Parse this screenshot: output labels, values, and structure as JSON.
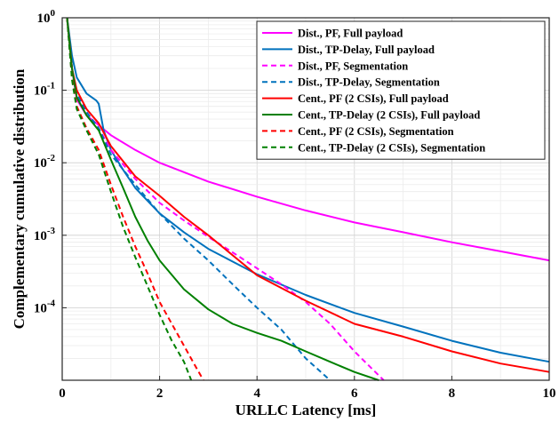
{
  "chart_data": {
    "type": "line",
    "xlabel": "URLLC Latency [ms]",
    "ylabel": "Complementary cumulative distribution",
    "xlim": [
      0,
      10
    ],
    "ylim": [
      1e-05,
      1
    ],
    "yscale": "log",
    "grid": true,
    "legend_position": "top-right",
    "x_ticks": [
      0,
      2,
      4,
      6,
      8,
      10
    ],
    "x_tick_labels": [
      "0",
      "2",
      "4",
      "6",
      "8",
      "10"
    ],
    "y_ticks": [
      0.0001,
      0.001,
      0.01,
      0.1,
      1
    ],
    "y_tick_labels": [
      {
        "base": "10",
        "exp": "-4"
      },
      {
        "base": "10",
        "exp": "-3"
      },
      {
        "base": "10",
        "exp": "-2"
      },
      {
        "base": "10",
        "exp": "-1"
      },
      {
        "base": "10",
        "exp": "0"
      }
    ],
    "series": [
      {
        "name": "Dist., PF, Full payload",
        "color": "#ff00ff",
        "style": "solid",
        "x": [
          0.1,
          0.2,
          0.3,
          0.5,
          0.75,
          1,
          1.5,
          2,
          3,
          4,
          5,
          6,
          7,
          8,
          9,
          10
        ],
        "y": [
          1,
          0.2,
          0.075,
          0.045,
          0.033,
          0.024,
          0.015,
          0.01,
          0.0055,
          0.0034,
          0.0022,
          0.0015,
          0.0011,
          0.0008,
          0.0006,
          0.00045
        ]
      },
      {
        "name": "Dist., TP-Delay, Full payload",
        "color": "#0072bd",
        "style": "solid",
        "x": [
          0.1,
          0.2,
          0.3,
          0.5,
          0.7,
          0.75,
          0.85,
          1,
          1.25,
          1.5,
          2,
          2.5,
          3,
          4,
          5,
          6,
          7,
          8,
          9,
          10
        ],
        "y": [
          1,
          0.3,
          0.15,
          0.09,
          0.072,
          0.065,
          0.028,
          0.015,
          0.008,
          0.0045,
          0.002,
          0.0011,
          0.00065,
          0.00029,
          0.00015,
          8.5e-05,
          5.5e-05,
          3.5e-05,
          2.4e-05,
          1.8e-05
        ]
      },
      {
        "name": "Dist., PF, Segmentation",
        "color": "#ff00ff",
        "style": "dashed",
        "x": [
          0.1,
          0.2,
          0.3,
          0.5,
          0.75,
          1,
          1.5,
          2,
          2.5,
          3,
          3.5,
          4,
          4.5,
          5,
          5.5,
          6,
          6.6
        ],
        "y": [
          1,
          0.2,
          0.09,
          0.05,
          0.03,
          0.015,
          0.006,
          0.0028,
          0.0016,
          0.00095,
          0.00058,
          0.00035,
          0.00021,
          0.00012,
          6e-05,
          2.5e-05,
          1e-05
        ]
      },
      {
        "name": "Dist., TP-Delay, Segmentation",
        "color": "#0072bd",
        "style": "dashed",
        "x": [
          0.1,
          0.2,
          0.3,
          0.5,
          0.75,
          1,
          1.5,
          2,
          2.5,
          3,
          3.5,
          4,
          4.5,
          5,
          5.5
        ],
        "y": [
          1,
          0.2,
          0.09,
          0.05,
          0.03,
          0.013,
          0.005,
          0.002,
          0.0009,
          0.00045,
          0.00021,
          0.0001,
          5e-05,
          2e-05,
          1e-05
        ]
      },
      {
        "name": "Cent., PF (2 CSIs), Full payload",
        "color": "#ff0000",
        "style": "solid",
        "x": [
          0.1,
          0.2,
          0.3,
          0.5,
          0.75,
          1,
          1.5,
          2,
          2.5,
          3,
          4,
          5,
          6,
          7,
          8,
          9,
          10
        ],
        "y": [
          1,
          0.2,
          0.1,
          0.055,
          0.035,
          0.017,
          0.0065,
          0.0035,
          0.0018,
          0.001,
          0.00028,
          0.000125,
          6e-05,
          4e-05,
          2.5e-05,
          1.7e-05,
          1.3e-05
        ]
      },
      {
        "name": "Cent., TP-Delay (2 CSIs), Full payload",
        "color": "#008000",
        "style": "solid",
        "x": [
          0.1,
          0.2,
          0.3,
          0.5,
          0.75,
          1,
          1.25,
          1.5,
          1.75,
          2,
          2.5,
          3,
          3.5,
          4,
          4.5,
          5,
          5.5,
          6,
          6.5
        ],
        "y": [
          1,
          0.2,
          0.08,
          0.045,
          0.028,
          0.011,
          0.0045,
          0.0018,
          0.00085,
          0.00045,
          0.00018,
          9.5e-05,
          6e-05,
          4.5e-05,
          3.5e-05,
          2.5e-05,
          1.8e-05,
          1.3e-05,
          1e-05
        ]
      },
      {
        "name": "Cent., PF (2 CSIs), Segmentation",
        "color": "#ff0000",
        "style": "dashed",
        "x": [
          0.1,
          0.2,
          0.3,
          0.5,
          0.75,
          1,
          1.25,
          1.5,
          1.75,
          2,
          2.25,
          2.5,
          2.75,
          2.9
        ],
        "y": [
          1,
          0.15,
          0.06,
          0.03,
          0.015,
          0.005,
          0.0018,
          0.0007,
          0.0003,
          0.00012,
          6e-05,
          3e-05,
          1.5e-05,
          1e-05
        ]
      },
      {
        "name": "Cent., TP-Delay (2 CSIs), Segmentation",
        "color": "#008000",
        "style": "dashed",
        "x": [
          0.1,
          0.2,
          0.3,
          0.5,
          0.75,
          1,
          1.25,
          1.5,
          1.75,
          2,
          2.25,
          2.5,
          2.65
        ],
        "y": [
          1,
          0.14,
          0.055,
          0.028,
          0.013,
          0.004,
          0.0013,
          0.0005,
          0.0002,
          8e-05,
          3.5e-05,
          1.8e-05,
          1e-05
        ]
      }
    ]
  }
}
